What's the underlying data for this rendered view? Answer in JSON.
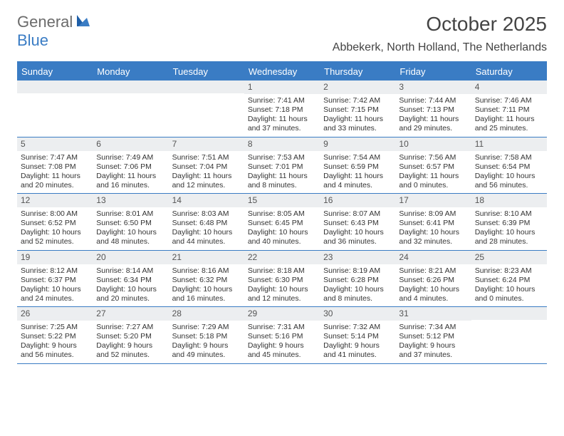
{
  "logo": {
    "part1": "General",
    "part2": "Blue"
  },
  "title": "October 2025",
  "location": "Abbekerk, North Holland, The Netherlands",
  "colors": {
    "accent": "#3a7cc4",
    "header_bg": "#3a7cc4",
    "daynum_bg": "#eceef0",
    "text": "#333333",
    "logo_gray": "#6b6b6b"
  },
  "day_names": [
    "Sunday",
    "Monday",
    "Tuesday",
    "Wednesday",
    "Thursday",
    "Friday",
    "Saturday"
  ],
  "weeks": [
    [
      {
        "n": "",
        "sr": "",
        "ss": "",
        "dl": ""
      },
      {
        "n": "",
        "sr": "",
        "ss": "",
        "dl": ""
      },
      {
        "n": "",
        "sr": "",
        "ss": "",
        "dl": ""
      },
      {
        "n": "1",
        "sr": "Sunrise: 7:41 AM",
        "ss": "Sunset: 7:18 PM",
        "dl": "Daylight: 11 hours and 37 minutes."
      },
      {
        "n": "2",
        "sr": "Sunrise: 7:42 AM",
        "ss": "Sunset: 7:15 PM",
        "dl": "Daylight: 11 hours and 33 minutes."
      },
      {
        "n": "3",
        "sr": "Sunrise: 7:44 AM",
        "ss": "Sunset: 7:13 PM",
        "dl": "Daylight: 11 hours and 29 minutes."
      },
      {
        "n": "4",
        "sr": "Sunrise: 7:46 AM",
        "ss": "Sunset: 7:11 PM",
        "dl": "Daylight: 11 hours and 25 minutes."
      }
    ],
    [
      {
        "n": "5",
        "sr": "Sunrise: 7:47 AM",
        "ss": "Sunset: 7:08 PM",
        "dl": "Daylight: 11 hours and 20 minutes."
      },
      {
        "n": "6",
        "sr": "Sunrise: 7:49 AM",
        "ss": "Sunset: 7:06 PM",
        "dl": "Daylight: 11 hours and 16 minutes."
      },
      {
        "n": "7",
        "sr": "Sunrise: 7:51 AM",
        "ss": "Sunset: 7:04 PM",
        "dl": "Daylight: 11 hours and 12 minutes."
      },
      {
        "n": "8",
        "sr": "Sunrise: 7:53 AM",
        "ss": "Sunset: 7:01 PM",
        "dl": "Daylight: 11 hours and 8 minutes."
      },
      {
        "n": "9",
        "sr": "Sunrise: 7:54 AM",
        "ss": "Sunset: 6:59 PM",
        "dl": "Daylight: 11 hours and 4 minutes."
      },
      {
        "n": "10",
        "sr": "Sunrise: 7:56 AM",
        "ss": "Sunset: 6:57 PM",
        "dl": "Daylight: 11 hours and 0 minutes."
      },
      {
        "n": "11",
        "sr": "Sunrise: 7:58 AM",
        "ss": "Sunset: 6:54 PM",
        "dl": "Daylight: 10 hours and 56 minutes."
      }
    ],
    [
      {
        "n": "12",
        "sr": "Sunrise: 8:00 AM",
        "ss": "Sunset: 6:52 PM",
        "dl": "Daylight: 10 hours and 52 minutes."
      },
      {
        "n": "13",
        "sr": "Sunrise: 8:01 AM",
        "ss": "Sunset: 6:50 PM",
        "dl": "Daylight: 10 hours and 48 minutes."
      },
      {
        "n": "14",
        "sr": "Sunrise: 8:03 AM",
        "ss": "Sunset: 6:48 PM",
        "dl": "Daylight: 10 hours and 44 minutes."
      },
      {
        "n": "15",
        "sr": "Sunrise: 8:05 AM",
        "ss": "Sunset: 6:45 PM",
        "dl": "Daylight: 10 hours and 40 minutes."
      },
      {
        "n": "16",
        "sr": "Sunrise: 8:07 AM",
        "ss": "Sunset: 6:43 PM",
        "dl": "Daylight: 10 hours and 36 minutes."
      },
      {
        "n": "17",
        "sr": "Sunrise: 8:09 AM",
        "ss": "Sunset: 6:41 PM",
        "dl": "Daylight: 10 hours and 32 minutes."
      },
      {
        "n": "18",
        "sr": "Sunrise: 8:10 AM",
        "ss": "Sunset: 6:39 PM",
        "dl": "Daylight: 10 hours and 28 minutes."
      }
    ],
    [
      {
        "n": "19",
        "sr": "Sunrise: 8:12 AM",
        "ss": "Sunset: 6:37 PM",
        "dl": "Daylight: 10 hours and 24 minutes."
      },
      {
        "n": "20",
        "sr": "Sunrise: 8:14 AM",
        "ss": "Sunset: 6:34 PM",
        "dl": "Daylight: 10 hours and 20 minutes."
      },
      {
        "n": "21",
        "sr": "Sunrise: 8:16 AM",
        "ss": "Sunset: 6:32 PM",
        "dl": "Daylight: 10 hours and 16 minutes."
      },
      {
        "n": "22",
        "sr": "Sunrise: 8:18 AM",
        "ss": "Sunset: 6:30 PM",
        "dl": "Daylight: 10 hours and 12 minutes."
      },
      {
        "n": "23",
        "sr": "Sunrise: 8:19 AM",
        "ss": "Sunset: 6:28 PM",
        "dl": "Daylight: 10 hours and 8 minutes."
      },
      {
        "n": "24",
        "sr": "Sunrise: 8:21 AM",
        "ss": "Sunset: 6:26 PM",
        "dl": "Daylight: 10 hours and 4 minutes."
      },
      {
        "n": "25",
        "sr": "Sunrise: 8:23 AM",
        "ss": "Sunset: 6:24 PM",
        "dl": "Daylight: 10 hours and 0 minutes."
      }
    ],
    [
      {
        "n": "26",
        "sr": "Sunrise: 7:25 AM",
        "ss": "Sunset: 5:22 PM",
        "dl": "Daylight: 9 hours and 56 minutes."
      },
      {
        "n": "27",
        "sr": "Sunrise: 7:27 AM",
        "ss": "Sunset: 5:20 PM",
        "dl": "Daylight: 9 hours and 52 minutes."
      },
      {
        "n": "28",
        "sr": "Sunrise: 7:29 AM",
        "ss": "Sunset: 5:18 PM",
        "dl": "Daylight: 9 hours and 49 minutes."
      },
      {
        "n": "29",
        "sr": "Sunrise: 7:31 AM",
        "ss": "Sunset: 5:16 PM",
        "dl": "Daylight: 9 hours and 45 minutes."
      },
      {
        "n": "30",
        "sr": "Sunrise: 7:32 AM",
        "ss": "Sunset: 5:14 PM",
        "dl": "Daylight: 9 hours and 41 minutes."
      },
      {
        "n": "31",
        "sr": "Sunrise: 7:34 AM",
        "ss": "Sunset: 5:12 PM",
        "dl": "Daylight: 9 hours and 37 minutes."
      },
      {
        "n": "",
        "sr": "",
        "ss": "",
        "dl": ""
      }
    ]
  ]
}
